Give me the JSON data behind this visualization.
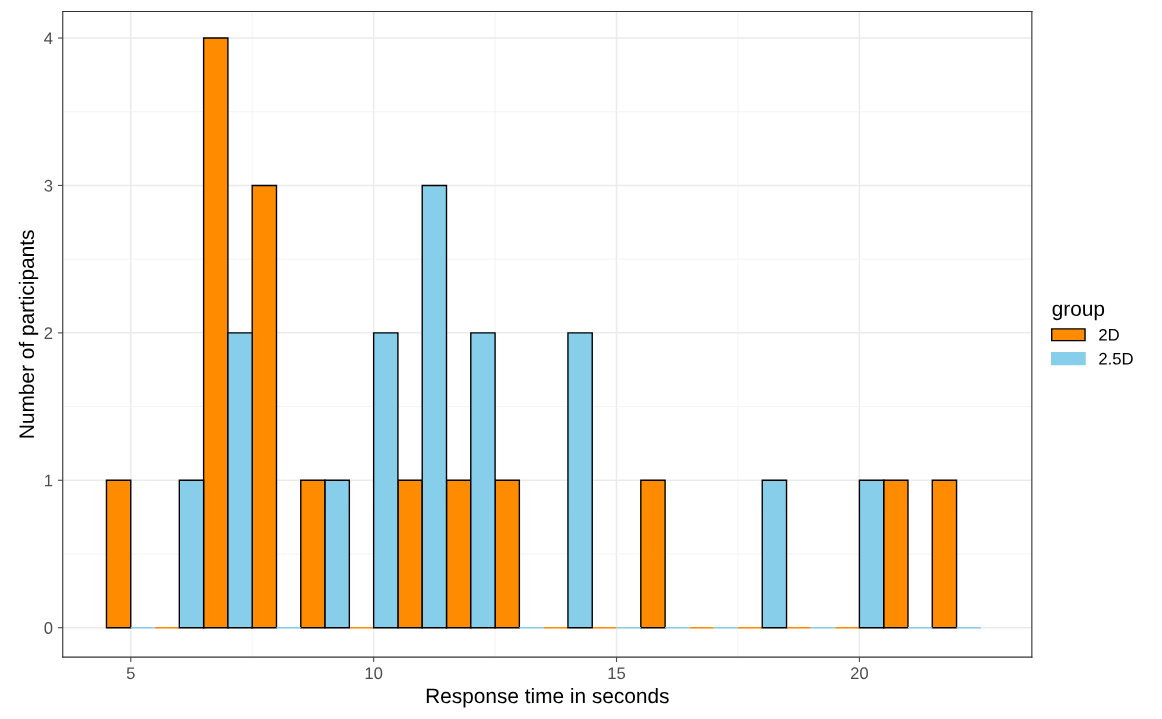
{
  "chart_data": {
    "type": "histogram",
    "xlabel": "Response time in seconds",
    "ylabel": "Number of participants",
    "legend_title": "group",
    "bins": [
      4.5,
      5.5,
      6.5,
      7.5,
      8.5,
      9.5,
      10.5,
      11.5,
      12.5,
      13.5,
      14.5,
      15.5,
      16.5,
      17.5,
      18.5,
      19.5,
      20.5,
      21.5,
      22.5
    ],
    "series": [
      {
        "name": "2D",
        "color": "#ff8c00",
        "values": [
          1,
          0,
          4,
          3,
          1,
          0,
          1,
          1,
          1,
          0,
          0,
          1,
          0,
          0,
          0,
          0,
          1,
          1
        ]
      },
      {
        "name": "2.5D",
        "color": "#87ceeb",
        "values": [
          0,
          1,
          2,
          0,
          1,
          2,
          3,
          2,
          0,
          2,
          0,
          0,
          0,
          1,
          0,
          1,
          0,
          0
        ]
      }
    ],
    "xlim": [
      3.6,
      23.55
    ],
    "ylim": [
      -0.2,
      4.18
    ],
    "xticks": [
      5,
      10,
      15,
      20
    ],
    "yticks": [
      0,
      1,
      2,
      3,
      4
    ],
    "grid": true,
    "legend": "right"
  }
}
